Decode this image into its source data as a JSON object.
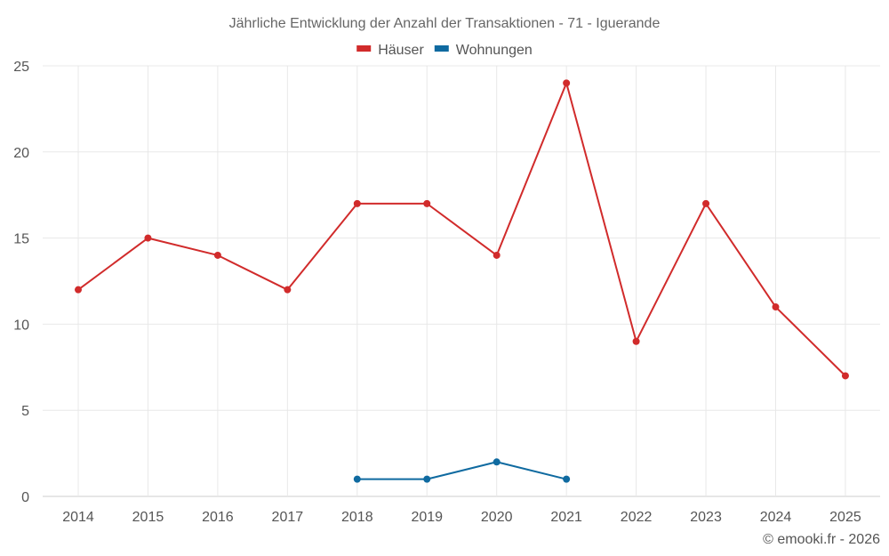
{
  "chart_data": {
    "type": "line",
    "title": "Jährliche Entwicklung der Anzahl der Transaktionen - 71 - Iguerande",
    "xlabel": "",
    "ylabel": "",
    "categories": [
      "2014",
      "2015",
      "2016",
      "2017",
      "2018",
      "2019",
      "2020",
      "2021",
      "2022",
      "2023",
      "2024",
      "2025"
    ],
    "ylim": [
      0,
      25
    ],
    "yticks": [
      "0",
      "5",
      "10",
      "15",
      "20",
      "25"
    ],
    "grid": true,
    "legend_position": "top-center",
    "series": [
      {
        "name": "Häuser",
        "color": "#d12b2b",
        "values": [
          12,
          15,
          14,
          12,
          17,
          17,
          14,
          24,
          9,
          17,
          11,
          7
        ]
      },
      {
        "name": "Wohnungen",
        "color": "#0f6aa0",
        "values": [
          null,
          null,
          null,
          null,
          1,
          1,
          2,
          1,
          null,
          null,
          null,
          null
        ]
      }
    ]
  },
  "credit": "© emooki.fr - 2026"
}
